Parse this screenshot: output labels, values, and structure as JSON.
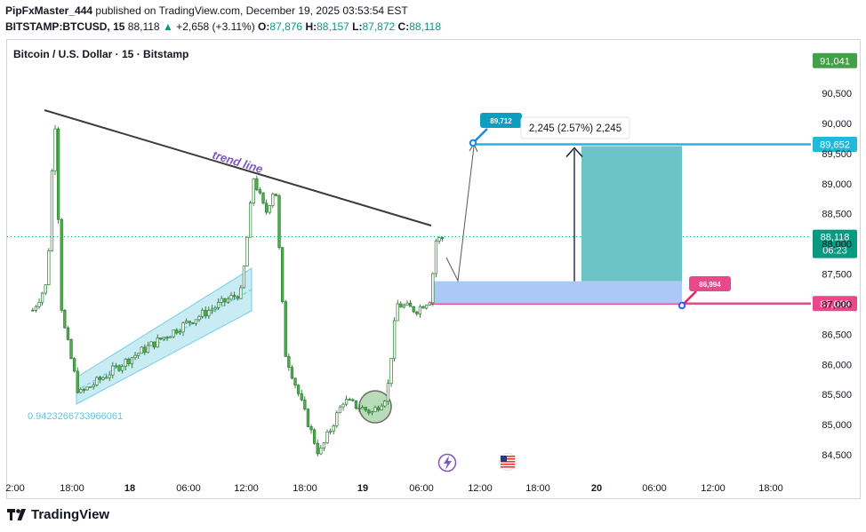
{
  "header": {
    "author": "PipFxMaster_444",
    "published_text": "published on TradingView.com, December 19, 2025 03:53:54 EST",
    "symbol": "BITSTAMP:BTCUSD, 15",
    "last": "88,118",
    "change": "+2,658 (+3.11%)",
    "o_label": "O:",
    "o": "87,876",
    "h_label": "H:",
    "h": "88,157",
    "l_label": "L:",
    "l": "87,872",
    "c_label": "C:",
    "c": "88,118"
  },
  "chart_title": "Bitcoin / U.S. Dollar · 15 · Bitstamp",
  "footer": {
    "brand": "TradingView"
  },
  "colors": {
    "up": "#089981",
    "down": "#f23645",
    "candle": "#26a69a",
    "target": "#22b8d8",
    "stop": "#e9488a",
    "reward_fill": "#6dc4c8",
    "risk_fill": "#a8c5f5",
    "trendline": "#3b3b3b",
    "annotation": "#7e57c2"
  },
  "chart_data": {
    "type": "candlestick",
    "title": "Bitcoin / U.S. Dollar · 15 · Bitstamp",
    "y_axis": {
      "range": [
        84100,
        91300
      ],
      "ticks": [
        "91,000",
        "90,500",
        "90,000",
        "89,500",
        "89,000",
        "88,500",
        "88,000",
        "87,500",
        "87,000",
        "86,500",
        "86,000",
        "85,500",
        "85,000",
        "84,500"
      ]
    },
    "x_axis": {
      "ticks": [
        "2:00",
        "18:00",
        "18",
        "06:00",
        "12:00",
        "18:00",
        "19",
        "06:00",
        "12:00",
        "18:00",
        "20",
        "06:00",
        "12:00",
        "18:00"
      ]
    },
    "price_path": [
      {
        "t": "Dec 17 14:00",
        "p": 86900
      },
      {
        "t": "Dec 17 15:30",
        "p": 87350
      },
      {
        "t": "Dec 17 16:15",
        "p": 90250
      },
      {
        "t": "Dec 17 17:00",
        "p": 86800
      },
      {
        "t": "Dec 17 18:45",
        "p": 85500
      },
      {
        "t": "Dec 18 00:00",
        "p": 86100
      },
      {
        "t": "Dec 18 06:00",
        "p": 86700
      },
      {
        "t": "Dec 18 11:30",
        "p": 87200
      },
      {
        "t": "Dec 18 12:45",
        "p": 89100
      },
      {
        "t": "Dec 18 14:00",
        "p": 88500
      },
      {
        "t": "Dec 18 15:00",
        "p": 89000
      },
      {
        "t": "Dec 18 16:00",
        "p": 86200
      },
      {
        "t": "Dec 18 18:00",
        "p": 85200
      },
      {
        "t": "Dec 18 19:30",
        "p": 84500
      },
      {
        "t": "Dec 18 22:00",
        "p": 85400
      },
      {
        "t": "Dec 19 01:00",
        "p": 85200
      },
      {
        "t": "Dec 19 02:30",
        "p": 85500
      },
      {
        "t": "Dec 19 03:30",
        "p": 87000
      },
      {
        "t": "Dec 19 05:30",
        "p": 86900
      },
      {
        "t": "Dec 19 07:00",
        "p": 87100
      },
      {
        "t": "Dec 19 07:30",
        "p": 88050
      },
      {
        "t": "Dec 19 08:30",
        "p": 88118
      }
    ],
    "annotations": {
      "last_price": "88,118",
      "countdown": "06:23",
      "top_label": "91,041",
      "target_label": "89,652",
      "stop_label": "87,009",
      "target_marker": "89,712",
      "stop_marker": "86,994",
      "position_text": "2,245 (2.57%) 2,245",
      "trend_label": "trend line",
      "channel_value": "0.9423266733966061"
    }
  }
}
